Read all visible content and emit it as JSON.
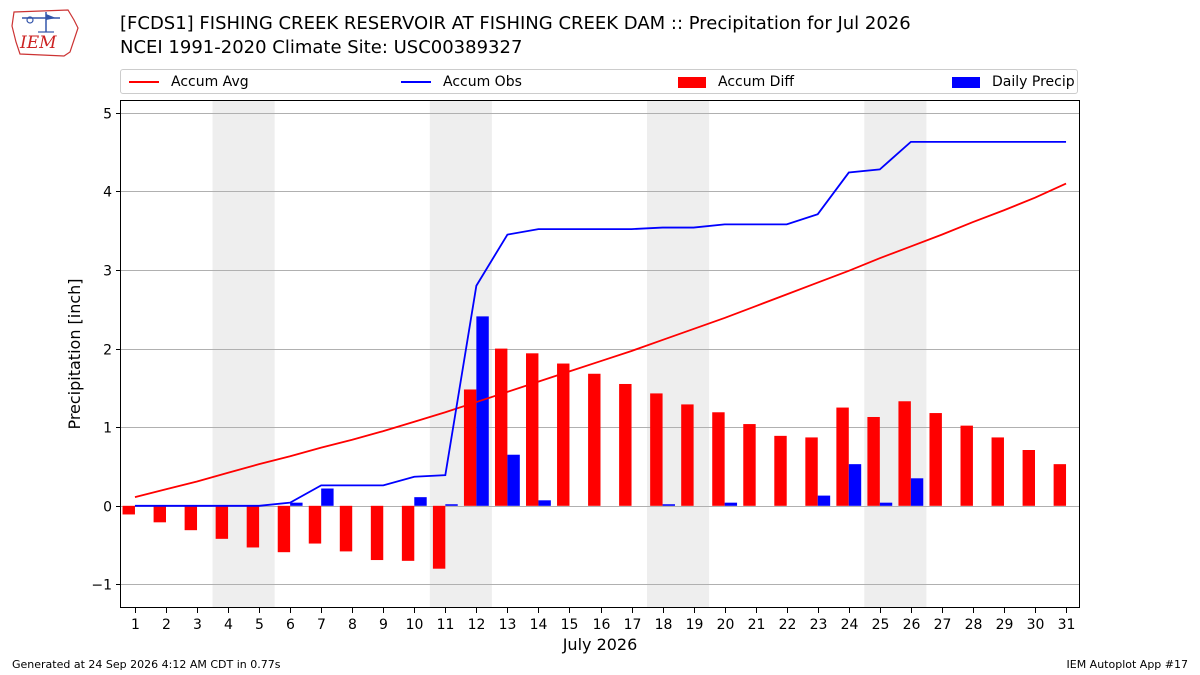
{
  "header": {
    "logo_text": "IEM",
    "title_line1": "[FCDS1] FISHING CREEK RESERVOIR  AT FISHING CREEK DAM :: Precipitation for Jul 2026",
    "title_line2": "NCEI 1991-2020 Climate Site: USC00389327"
  },
  "legend": {
    "items": [
      {
        "label": "Accum Avg",
        "kind": "line",
        "color": "#ff0000"
      },
      {
        "label": "Accum Obs",
        "kind": "line",
        "color": "#0000ff"
      },
      {
        "label": "Accum Diff",
        "kind": "bar",
        "color": "#ff0000"
      },
      {
        "label": "Daily Precip",
        "kind": "bar",
        "color": "#0000ff"
      }
    ]
  },
  "footer": {
    "left": "Generated at 24 Sep 2026 4:12 AM CDT in 0.77s",
    "right": "IEM Autoplot App #17"
  },
  "chart_data": {
    "type": "bar",
    "xlabel": "July 2026",
    "ylabel": "Precipitation [inch]",
    "ylim": [
      -1.3,
      5.15
    ],
    "yticks": [
      -1,
      0,
      1,
      2,
      3,
      4,
      5
    ],
    "ytick_labels": [
      "−1",
      "0",
      "1",
      "2",
      "3",
      "4",
      "5"
    ],
    "grid": "horizontal",
    "legend_position": "top",
    "x": [
      1,
      2,
      3,
      4,
      5,
      6,
      7,
      8,
      9,
      10,
      11,
      12,
      13,
      14,
      15,
      16,
      17,
      18,
      19,
      20,
      21,
      22,
      23,
      24,
      25,
      26,
      27,
      28,
      29,
      30,
      31
    ],
    "weekend_shading": [
      [
        3.5,
        5.5
      ],
      [
        10.5,
        12.5
      ],
      [
        17.5,
        19.5
      ],
      [
        24.5,
        26.5
      ]
    ],
    "series": [
      {
        "name": "Accum Avg",
        "kind": "line",
        "color": "#ff0000",
        "values": [
          0.11,
          0.21,
          0.31,
          0.42,
          0.53,
          0.63,
          0.74,
          0.84,
          0.95,
          1.07,
          1.19,
          1.32,
          1.45,
          1.58,
          1.71,
          1.84,
          1.97,
          2.11,
          2.25,
          2.39,
          2.54,
          2.69,
          2.84,
          2.99,
          3.15,
          3.3,
          3.45,
          3.61,
          3.76,
          3.92,
          4.1
        ]
      },
      {
        "name": "Accum Obs",
        "kind": "line",
        "color": "#0000ff",
        "values": [
          0.0,
          0.0,
          0.0,
          0.0,
          0.0,
          0.04,
          0.26,
          0.26,
          0.26,
          0.37,
          0.39,
          2.8,
          3.45,
          3.52,
          3.52,
          3.52,
          3.52,
          3.54,
          3.54,
          3.58,
          3.58,
          3.58,
          3.71,
          4.24,
          4.28,
          4.63,
          4.63,
          4.63,
          4.63,
          4.63,
          4.63
        ]
      },
      {
        "name": "Accum Diff",
        "kind": "bar",
        "color": "#ff0000",
        "values": [
          -0.11,
          -0.21,
          -0.31,
          -0.42,
          -0.53,
          -0.59,
          -0.48,
          -0.58,
          -0.69,
          -0.7,
          -0.8,
          1.48,
          2.0,
          1.94,
          1.81,
          1.68,
          1.55,
          1.43,
          1.29,
          1.19,
          1.04,
          0.89,
          0.87,
          1.25,
          1.13,
          1.33,
          1.18,
          1.02,
          0.87,
          0.71,
          0.53
        ]
      },
      {
        "name": "Daily Precip",
        "kind": "bar",
        "color": "#0000ff",
        "values": [
          0,
          0,
          0,
          0,
          0,
          0.04,
          0.22,
          0,
          0,
          0.11,
          0.02,
          2.41,
          0.65,
          0.07,
          0,
          0,
          0,
          0.02,
          0,
          0.04,
          0,
          0,
          0.13,
          0.53,
          0.04,
          0.35,
          0,
          0,
          0,
          0,
          0
        ]
      }
    ]
  }
}
